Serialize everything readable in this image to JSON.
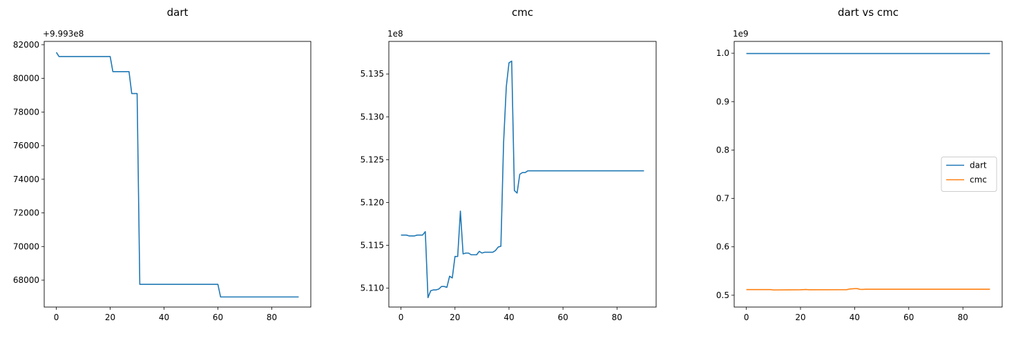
{
  "chart_data": [
    {
      "type": "line",
      "title": "dart",
      "offset_label": "+9.993e8",
      "xlim": [
        -4.5,
        94.5
      ],
      "ylim": [
        66400,
        82200
      ],
      "xticks": [
        0,
        20,
        40,
        60,
        80
      ],
      "yticks": [
        68000,
        70000,
        72000,
        74000,
        76000,
        78000,
        80000,
        82000
      ],
      "ytick_labels": [
        "68000",
        "70000",
        "72000",
        "74000",
        "76000",
        "78000",
        "80000",
        "82000"
      ],
      "series": [
        {
          "color": "#1f77b4",
          "x": [
            0,
            1,
            20,
            21,
            27,
            28,
            30,
            31,
            60,
            61,
            90
          ],
          "y": [
            81550,
            81300,
            81300,
            80400,
            80400,
            79100,
            79100,
            67750,
            67750,
            67000,
            67000
          ]
        }
      ]
    },
    {
      "type": "line",
      "title": "cmc",
      "offset_label": "1e8",
      "xlim": [
        -4.5,
        94.5
      ],
      "ylim": [
        5.1078,
        5.1388
      ],
      "xticks": [
        0,
        20,
        40,
        60,
        80
      ],
      "yticks": [
        5.11,
        5.115,
        5.12,
        5.125,
        5.13,
        5.135
      ],
      "ytick_labels": [
        "5.110",
        "5.115",
        "5.120",
        "5.125",
        "5.130",
        "5.135"
      ],
      "series": [
        {
          "color": "#1f77b4",
          "x": [
            0,
            1,
            2,
            3,
            4,
            5,
            6,
            7,
            8,
            9,
            10,
            11,
            12,
            13,
            14,
            15,
            16,
            17,
            18,
            19,
            20,
            21,
            22,
            23,
            24,
            25,
            26,
            27,
            28,
            29,
            30,
            31,
            32,
            33,
            34,
            35,
            36,
            37,
            38,
            39,
            40,
            41,
            42,
            43,
            44,
            45,
            46,
            47,
            90
          ],
          "y": [
            5.1162,
            5.1162,
            5.1162,
            5.1161,
            5.1161,
            5.1161,
            5.1162,
            5.1162,
            5.1162,
            5.1166,
            5.1089,
            5.1097,
            5.1098,
            5.1098,
            5.1099,
            5.1102,
            5.1102,
            5.1101,
            5.1114,
            5.1112,
            5.1137,
            5.1137,
            5.119,
            5.114,
            5.1141,
            5.1141,
            5.1139,
            5.1139,
            5.1139,
            5.1143,
            5.1141,
            5.1142,
            5.1142,
            5.1142,
            5.1142,
            5.1144,
            5.1148,
            5.1149,
            5.127,
            5.1335,
            5.1363,
            5.1365,
            5.1214,
            5.1211,
            5.1233,
            5.1235,
            5.1235,
            5.1237,
            5.1237
          ]
        }
      ]
    },
    {
      "type": "line",
      "title": "dart vs cmc",
      "offset_label": "1e9",
      "xlim": [
        -4.5,
        94.5
      ],
      "ylim": [
        0.4756,
        1.0244
      ],
      "xticks": [
        0,
        20,
        40,
        60,
        80
      ],
      "yticks": [
        0.5,
        0.6,
        0.7,
        0.8,
        0.9,
        1.0
      ],
      "ytick_labels": [
        "0.5",
        "0.6",
        "0.7",
        "0.8",
        "0.9",
        "1.0"
      ],
      "legend": "center-right",
      "series": [
        {
          "name": "dart",
          "color": "#1f77b4",
          "x": [
            0,
            90
          ],
          "y": [
            0.99937,
            0.99937
          ]
        },
        {
          "name": "cmc",
          "color": "#ff7f0e",
          "x": [
            0,
            9,
            10,
            20,
            22,
            23,
            37,
            38,
            40,
            41,
            42,
            43,
            44,
            47,
            90
          ],
          "y": [
            0.51162,
            0.51166,
            0.51089,
            0.51137,
            0.5119,
            0.5114,
            0.51149,
            0.5127,
            0.51363,
            0.51365,
            0.51214,
            0.51211,
            0.51233,
            0.51237,
            0.51237
          ]
        }
      ]
    }
  ]
}
